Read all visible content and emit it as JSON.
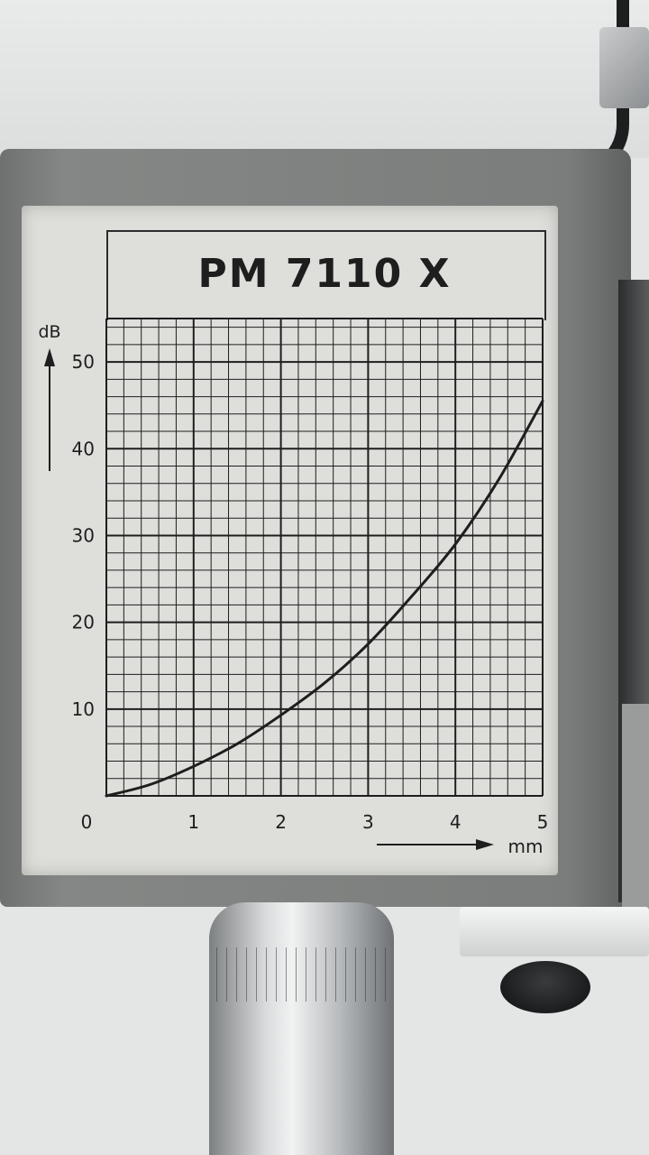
{
  "chart_data": {
    "type": "line",
    "title": "PM 7110 X",
    "xlabel": "mm",
    "ylabel": "dB",
    "xlim": [
      0,
      5
    ],
    "ylim": [
      0,
      55
    ],
    "x_ticks": [
      "0",
      "1",
      "2",
      "3",
      "4",
      "5"
    ],
    "y_ticks": [
      "10",
      "20",
      "30",
      "40",
      "50"
    ],
    "grid": true,
    "series": [
      {
        "name": "",
        "x": [
          0,
          0.5,
          1.0,
          1.5,
          2.0,
          2.5,
          3.0,
          3.5,
          4.0,
          4.5,
          5.0
        ],
        "y": [
          0,
          1.3,
          3.4,
          6.0,
          9.3,
          13.0,
          17.5,
          23.0,
          29.0,
          36.5,
          45.5
        ]
      }
    ]
  },
  "colors": {
    "ink": "#1e1e1e",
    "label_paper": "#dedfdb",
    "housing": "#7b7d7c"
  }
}
